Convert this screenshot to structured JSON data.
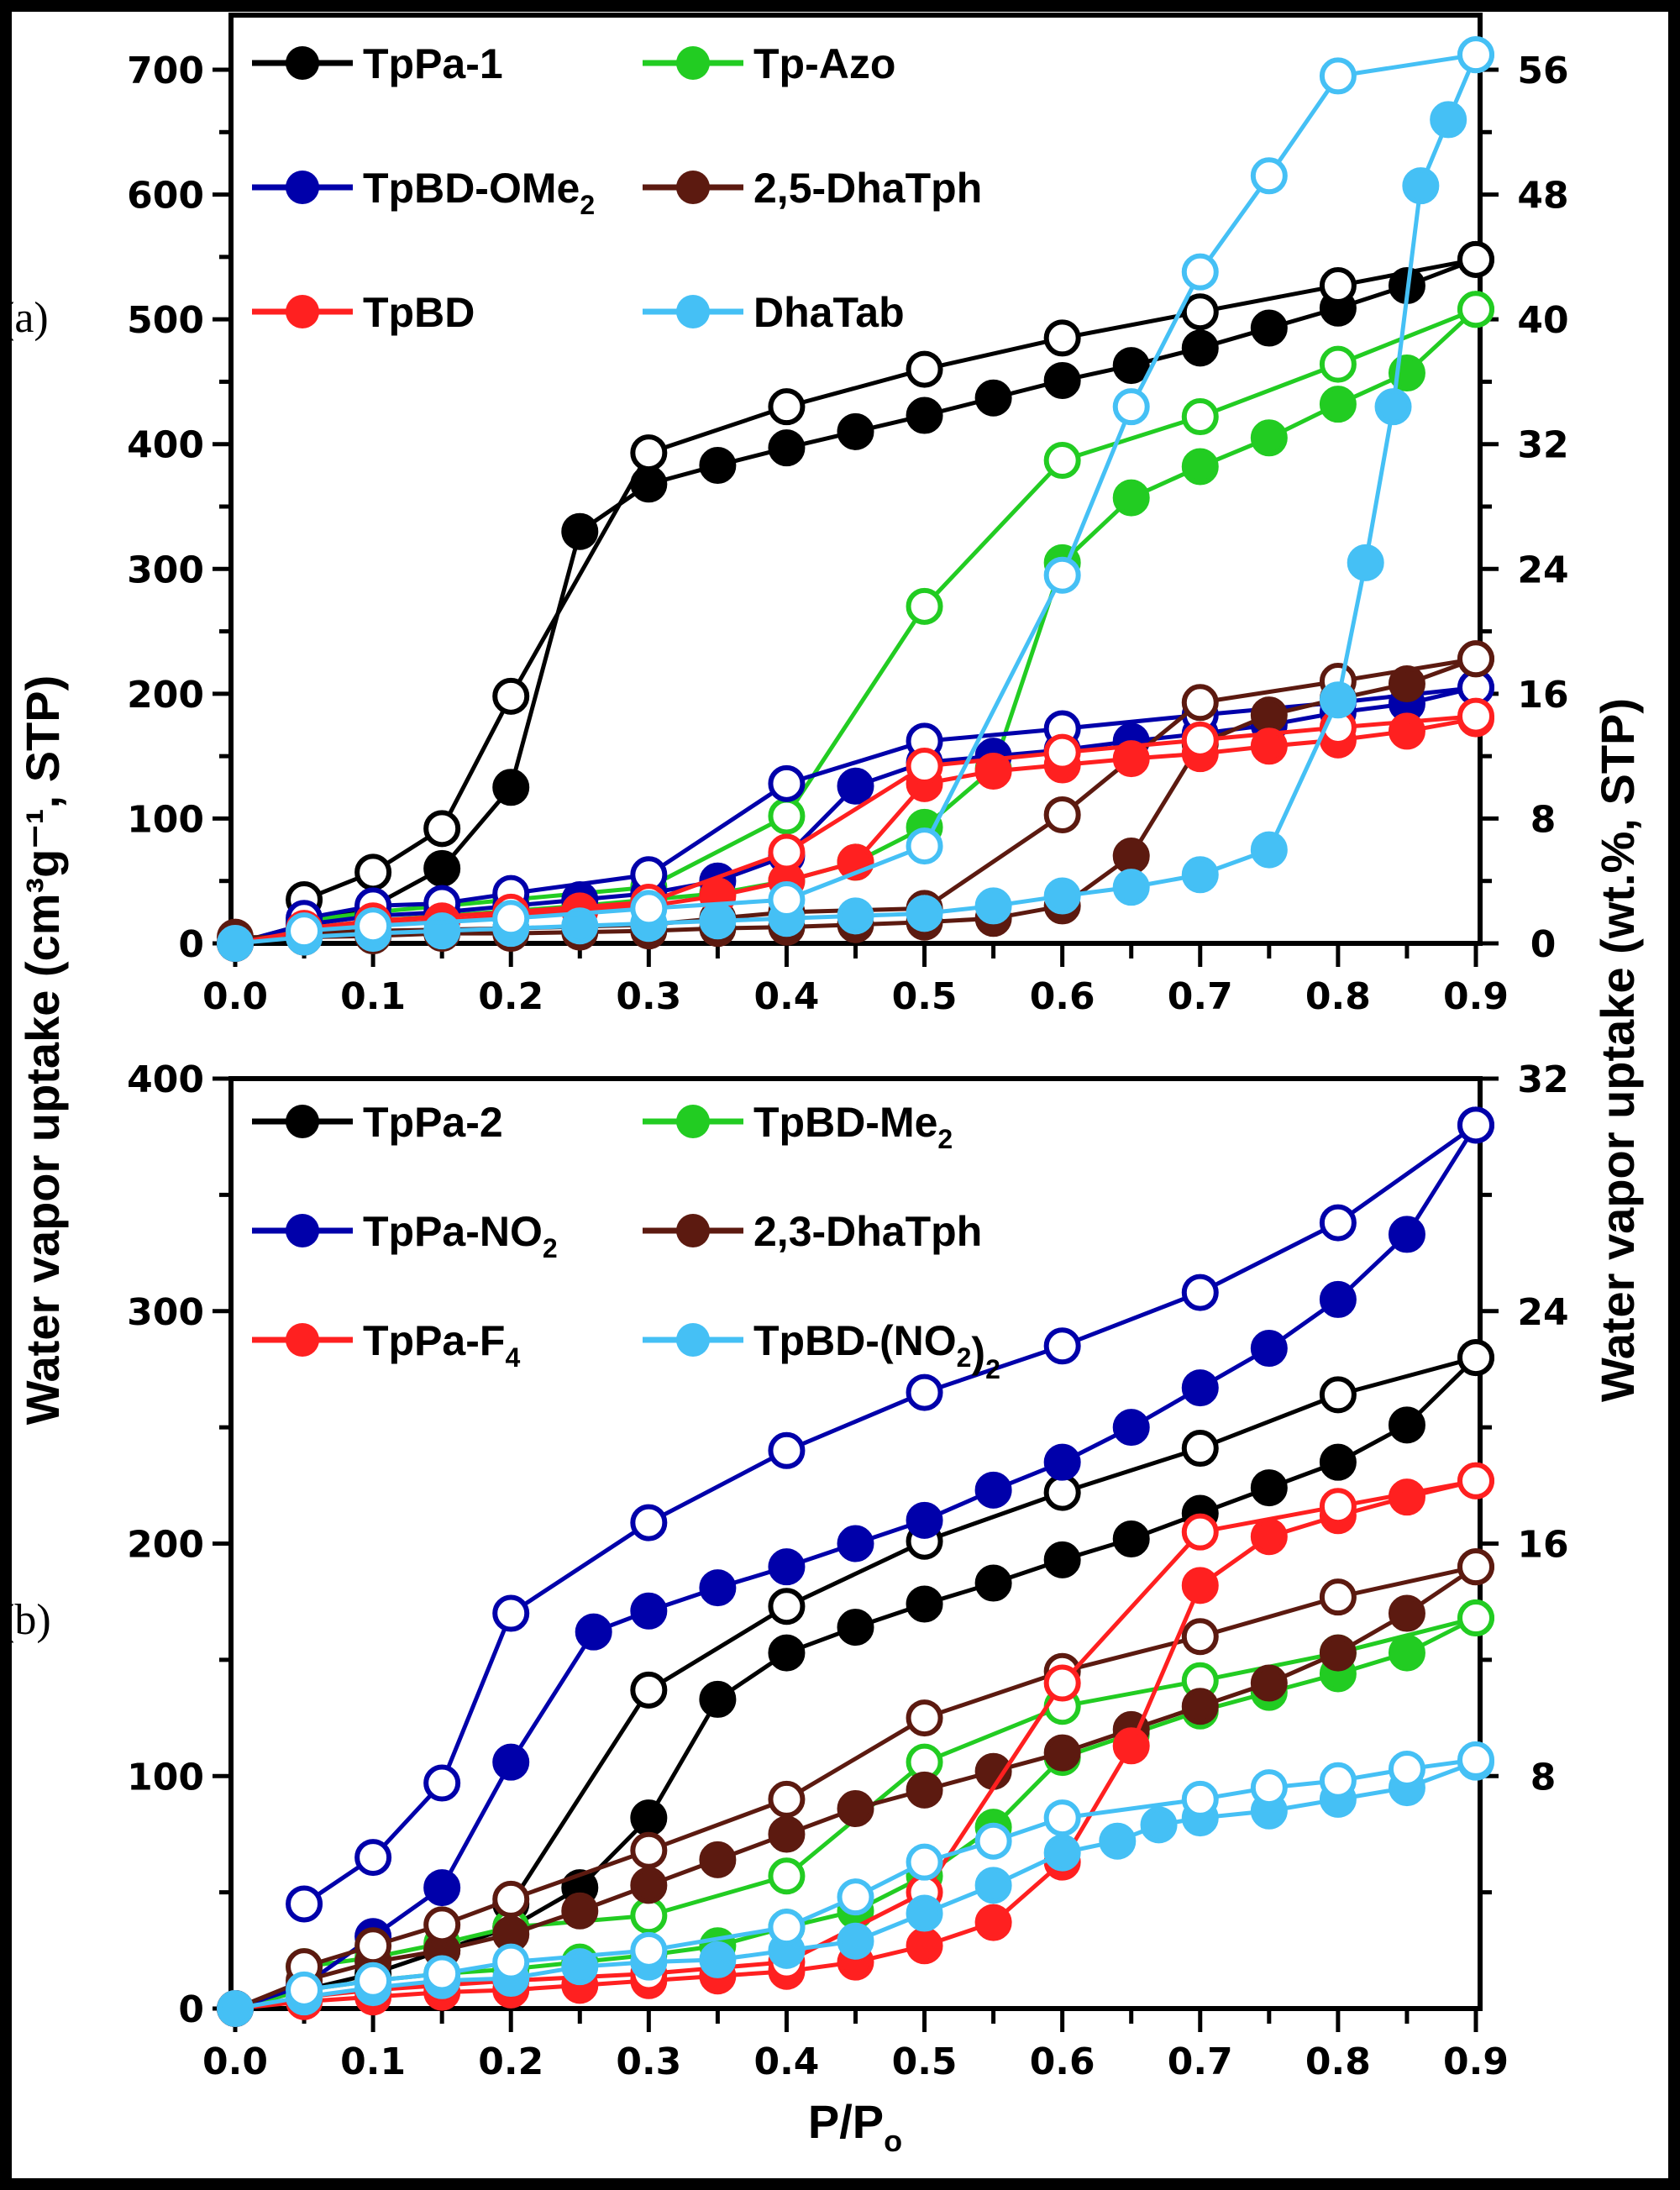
{
  "chart_data": [
    {
      "type": "line",
      "panel_label": "(a)",
      "xlabel": "",
      "ylabel": "Water vapor uptake (cm³g⁻¹, STP)",
      "y2label": "Water vapor uptake (wt.%, STP)",
      "xlim": [
        0.0,
        0.9
      ],
      "ylim": [
        0,
        700
      ],
      "y2lim": [
        0,
        56
      ],
      "xticks": [
        "0.0",
        "0.1",
        "0.2",
        "0.3",
        "0.4",
        "0.5",
        "0.6",
        "0.7",
        "0.8",
        "0.9"
      ],
      "yticks": [
        "0",
        "100",
        "200",
        "300",
        "400",
        "500",
        "600",
        "700"
      ],
      "y2ticks": [
        "0",
        "8",
        "16",
        "24",
        "32",
        "40",
        "48",
        "56"
      ],
      "legend": "top-left",
      "series": [
        {
          "name": "TpPa-1",
          "color": "#000000",
          "adsorption": {
            "x": [
              0,
              0.05,
              0.1,
              0.15,
              0.2,
              0.25,
              0.3,
              0.35,
              0.4,
              0.45,
              0.5,
              0.55,
              0.6,
              0.65,
              0.7,
              0.75,
              0.8,
              0.85,
              0.9
            ],
            "y": [
              0,
              15,
              30,
              60,
              125,
              330,
              368,
              383,
              397,
              410,
              423,
              437,
              451,
              463,
              477,
              493,
              509,
              527,
              548
            ]
          },
          "desorption": {
            "x": [
              0.9,
              0.8,
              0.7,
              0.6,
              0.5,
              0.4,
              0.3,
              0.2,
              0.15,
              0.1,
              0.05
            ],
            "y": [
              548,
              527,
              506,
              485,
              460,
              430,
              393,
              198,
              92,
              57,
              35
            ]
          }
        },
        {
          "name": "Tp-Azo",
          "color": "#22cc22",
          "adsorption": {
            "x": [
              0,
              0.05,
              0.1,
              0.15,
              0.2,
              0.25,
              0.3,
              0.35,
              0.4,
              0.45,
              0.5,
              0.55,
              0.6,
              0.65,
              0.7,
              0.75,
              0.8,
              0.85,
              0.9
            ],
            "y": [
              0,
              12,
              18,
              22,
              26,
              30,
              35,
              40,
              50,
              65,
              93,
              140,
              305,
              357,
              382,
              405,
              432,
              457,
              508
            ]
          },
          "desorption": {
            "x": [
              0.9,
              0.8,
              0.7,
              0.6,
              0.5,
              0.4,
              0.3,
              0.2,
              0.1,
              0.05
            ],
            "y": [
              508,
              464,
              422,
              387,
              270,
              102,
              45,
              35,
              25,
              18
            ]
          }
        },
        {
          "name": "TpBD-OMe₂",
          "color": "#0000aa",
          "adsorption": {
            "x": [
              0,
              0.05,
              0.1,
              0.15,
              0.2,
              0.25,
              0.3,
              0.35,
              0.4,
              0.45,
              0.5,
              0.55,
              0.6,
              0.65,
              0.7,
              0.75,
              0.8,
              0.85,
              0.9
            ],
            "y": [
              0,
              15,
              22,
              25,
              30,
              35,
              40,
              50,
              70,
              126,
              145,
              150,
              155,
              162,
              168,
              175,
              185,
              192,
              205
            ]
          },
          "desorption": {
            "x": [
              0.9,
              0.8,
              0.7,
              0.6,
              0.5,
              0.4,
              0.3,
              0.2,
              0.15,
              0.1,
              0.05
            ],
            "y": [
              205,
              193,
              183,
              172,
              162,
              128,
              55,
              40,
              32,
              30,
              20
            ]
          }
        },
        {
          "name": "2,5-DhaTph",
          "color": "#5c1a10",
          "adsorption": {
            "x": [
              0,
              0.05,
              0.1,
              0.15,
              0.2,
              0.25,
              0.3,
              0.35,
              0.4,
              0.45,
              0.5,
              0.55,
              0.6,
              0.65,
              0.7,
              0.75,
              0.8,
              0.85,
              0.9
            ],
            "y": [
              5,
              5,
              6,
              8,
              8,
              9,
              10,
              12,
              13,
              15,
              17,
              20,
              30,
              70,
              160,
              183,
              196,
              208,
              228
            ]
          },
          "desorption": {
            "x": [
              0.9,
              0.8,
              0.7,
              0.6,
              0.5,
              0.4,
              0.35,
              0.3,
              0.2,
              0.1,
              0.05
            ],
            "y": [
              228,
              210,
              193,
              103,
              28,
              25,
              20,
              15,
              12,
              10,
              8
            ]
          }
        },
        {
          "name": "TpBD",
          "color": "#ff2020",
          "adsorption": {
            "x": [
              0,
              0.05,
              0.1,
              0.15,
              0.2,
              0.25,
              0.3,
              0.35,
              0.4,
              0.45,
              0.5,
              0.55,
              0.6,
              0.65,
              0.7,
              0.75,
              0.8,
              0.85,
              0.9
            ],
            "y": [
              0,
              10,
              15,
              18,
              22,
              26,
              30,
              38,
              50,
              65,
              128,
              138,
              143,
              148,
              152,
              158,
              163,
              170,
              180
            ]
          },
          "desorption": {
            "x": [
              0.9,
              0.8,
              0.7,
              0.6,
              0.5,
              0.4,
              0.3,
              0.2,
              0.1,
              0.05
            ],
            "y": [
              182,
              173,
              163,
              153,
              142,
              73,
              33,
              25,
              18,
              12
            ]
          }
        },
        {
          "name": "DhaTab",
          "color": "#45c0f5",
          "adsorption": {
            "x": [
              0,
              0.05,
              0.1,
              0.15,
              0.2,
              0.25,
              0.3,
              0.35,
              0.4,
              0.45,
              0.5,
              0.55,
              0.6,
              0.65,
              0.7,
              0.75,
              0.8,
              0.82,
              0.84,
              0.86,
              0.88,
              0.9
            ],
            "y": [
              0,
              5,
              8,
              10,
              12,
              14,
              16,
              18,
              20,
              22,
              24,
              30,
              38,
              45,
              55,
              75,
              195,
              305,
              430,
              607,
              660,
              712
            ]
          },
          "desorption": {
            "x": [
              0.9,
              0.8,
              0.75,
              0.7,
              0.65,
              0.6,
              0.5,
              0.4,
              0.3,
              0.2,
              0.1,
              0.05
            ],
            "y": [
              712,
              695,
              615,
              538,
              430,
              295,
              78,
              35,
              28,
              20,
              14,
              10
            ]
          }
        }
      ]
    },
    {
      "type": "line",
      "panel_label": "(b)",
      "xlabel": "P/Po",
      "ylabel": "Water vapor uptake (cm³g⁻¹, STP)",
      "y2label": "Water vapor uptake (wt.%, STP)",
      "xlim": [
        0.0,
        0.9
      ],
      "ylim": [
        0,
        400
      ],
      "y2lim": [
        0,
        32
      ],
      "xticks": [
        "0.0",
        "0.1",
        "0.2",
        "0.3",
        "0.4",
        "0.5",
        "0.6",
        "0.7",
        "0.8",
        "0.9"
      ],
      "yticks": [
        "0",
        "100",
        "200",
        "300",
        "400"
      ],
      "y2ticks": [
        "8",
        "16",
        "24",
        "32"
      ],
      "legend": "top-left",
      "series": [
        {
          "name": "TpPa-2",
          "color": "#000000",
          "adsorption": {
            "x": [
              0,
              0.05,
              0.1,
              0.15,
              0.2,
              0.25,
              0.3,
              0.35,
              0.4,
              0.45,
              0.5,
              0.55,
              0.6,
              0.65,
              0.7,
              0.75,
              0.8,
              0.85,
              0.9
            ],
            "y": [
              0,
              8,
              15,
              25,
              35,
              52,
              82,
              133,
              153,
              164,
              174,
              183,
              193,
              202,
              213,
              224,
              235,
              251,
              280
            ]
          },
          "desorption": {
            "x": [
              0.9,
              0.8,
              0.7,
              0.6,
              0.5,
              0.4,
              0.3,
              0.2
            ],
            "y": [
              280,
              264,
              241,
              222,
              201,
              173,
              137,
              45
            ]
          }
        },
        {
          "name": "TpBD-Me₂",
          "color": "#22cc22",
          "adsorption": {
            "x": [
              0,
              0.05,
              0.1,
              0.15,
              0.2,
              0.25,
              0.3,
              0.35,
              0.4,
              0.45,
              0.5,
              0.55,
              0.6,
              0.65,
              0.7,
              0.75,
              0.8,
              0.85,
              0.9
            ],
            "y": [
              0,
              8,
              12,
              15,
              17,
              20,
              23,
              27,
              35,
              42,
              57,
              78,
              108,
              118,
              128,
              136,
              144,
              153,
              168
            ]
          },
          "desorption": {
            "x": [
              0.9,
              0.8,
              0.7,
              0.6,
              0.5,
              0.4,
              0.3,
              0.2,
              0.15,
              0.1,
              0.05
            ],
            "y": [
              168,
              153,
              141,
              130,
              106,
              57,
              40,
              35,
              28,
              22,
              18
            ]
          }
        },
        {
          "name": "TpPa-NO₂",
          "color": "#0000aa",
          "adsorption": {
            "x": [
              0,
              0.05,
              0.1,
              0.15,
              0.2,
              0.26,
              0.3,
              0.35,
              0.4,
              0.45,
              0.5,
              0.55,
              0.6,
              0.65,
              0.7,
              0.75,
              0.8,
              0.85,
              0.9
            ],
            "y": [
              0,
              10,
              31,
              52,
              106,
              162,
              171,
              181,
              190,
              200,
              210,
              223,
              235,
              250,
              267,
              284,
              305,
              333,
              380
            ]
          },
          "desorption": {
            "x": [
              0.9,
              0.8,
              0.7,
              0.6,
              0.5,
              0.4,
              0.3,
              0.2,
              0.15,
              0.1,
              0.05
            ],
            "y": [
              380,
              338,
              308,
              285,
              265,
              240,
              209,
              170,
              97,
              65,
              45
            ]
          }
        },
        {
          "name": "2,3-DhaTph",
          "color": "#5c1a10",
          "adsorption": {
            "x": [
              0,
              0.05,
              0.1,
              0.15,
              0.2,
              0.25,
              0.3,
              0.35,
              0.4,
              0.45,
              0.5,
              0.55,
              0.6,
              0.65,
              0.7,
              0.75,
              0.8,
              0.85,
              0.9
            ],
            "y": [
              0,
              12,
              20,
              25,
              32,
              42,
              53,
              64,
              75,
              86,
              94,
              102,
              110,
              120,
              130,
              140,
              153,
              170,
              190
            ]
          },
          "desorption": {
            "x": [
              0.9,
              0.8,
              0.7,
              0.6,
              0.5,
              0.4,
              0.3,
              0.2,
              0.15,
              0.1,
              0.05
            ],
            "y": [
              190,
              177,
              160,
              145,
              125,
              90,
              68,
              47,
              36,
              27,
              18
            ]
          }
        },
        {
          "name": "TpPa-F₄",
          "color": "#ff2020",
          "adsorption": {
            "x": [
              0,
              0.05,
              0.1,
              0.15,
              0.2,
              0.25,
              0.3,
              0.35,
              0.4,
              0.45,
              0.5,
              0.55,
              0.6,
              0.65,
              0.7,
              0.75,
              0.8,
              0.85,
              0.9
            ],
            "y": [
              0,
              3,
              5,
              7,
              8,
              10,
              12,
              14,
              16,
              20,
              27,
              37,
              63,
              113,
              182,
              203,
              212,
              220,
              227
            ]
          },
          "desorption": {
            "x": [
              0.9,
              0.8,
              0.7,
              0.6,
              0.5,
              0.4,
              0.3,
              0.2,
              0.1,
              0.05
            ],
            "y": [
              227,
              216,
              205,
              140,
              50,
              20,
              15,
              12,
              8,
              5
            ]
          }
        },
        {
          "name": "TpBD-(NO₂)₂",
          "color": "#45c0f5",
          "adsorption": {
            "x": [
              0,
              0.05,
              0.1,
              0.15,
              0.2,
              0.25,
              0.3,
              0.35,
              0.4,
              0.45,
              0.5,
              0.55,
              0.6,
              0.64,
              0.67,
              0.7,
              0.75,
              0.8,
              0.85,
              0.9
            ],
            "y": [
              0,
              5,
              9,
              12,
              13,
              18,
              20,
              21,
              25,
              29,
              41,
              53,
              67,
              72,
              79,
              82,
              85,
              90,
              95,
              106
            ]
          },
          "desorption": {
            "x": [
              0.9,
              0.85,
              0.8,
              0.75,
              0.7,
              0.6,
              0.55,
              0.5,
              0.45,
              0.4,
              0.3,
              0.2,
              0.15,
              0.1,
              0.05
            ],
            "y": [
              107,
              103,
              98,
              95,
              90,
              82,
              72,
              63,
              48,
              35,
              25,
              20,
              15,
              12,
              8
            ]
          }
        }
      ]
    }
  ],
  "labels": {
    "panel_a": "(a)",
    "panel_b": "(b)",
    "ylabel": "Water vapor uptake (cm³g⁻¹, STP)",
    "y2label": "Water vapor uptake (wt.%, STP)",
    "xlabel": "P/Po"
  }
}
